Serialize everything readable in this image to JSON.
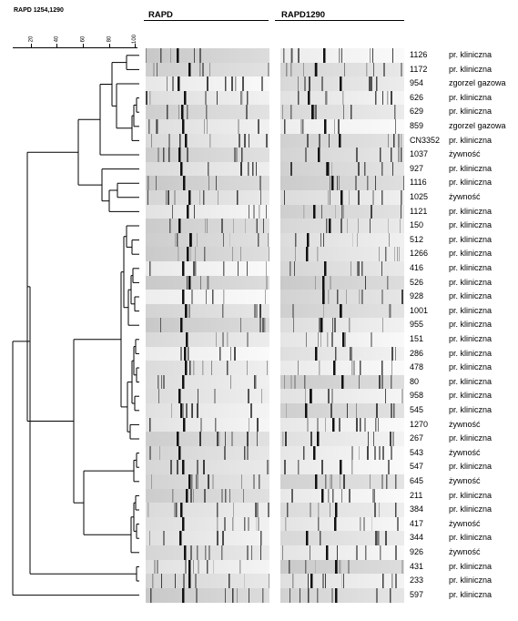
{
  "figure": {
    "title": "RAPD 1254,1290",
    "panel_headers": [
      "RAPD",
      "RAPD1290"
    ],
    "scale_ticks": [
      "20",
      "40",
      "60",
      "80",
      "100"
    ]
  },
  "samples": [
    {
      "id": "1126",
      "source": "pr. kliniczna"
    },
    {
      "id": "1172",
      "source": "pr. kliniczna"
    },
    {
      "id": "954",
      "source": "zgorzel gazowa"
    },
    {
      "id": "626",
      "source": "pr. kliniczna"
    },
    {
      "id": "629",
      "source": "pr. kliniczna"
    },
    {
      "id": "859",
      "source": "zgorzel gazowa"
    },
    {
      "id": "CN3352",
      "source": "pr. kliniczna"
    },
    {
      "id": "1037",
      "source": "żywność"
    },
    {
      "id": "927",
      "source": "pr. kliniczna"
    },
    {
      "id": "1116",
      "source": "pr. kliniczna"
    },
    {
      "id": "1025",
      "source": "żywność"
    },
    {
      "id": "1121",
      "source": "pr. kliniczna"
    },
    {
      "id": "150",
      "source": "pr. kliniczna"
    },
    {
      "id": "512",
      "source": "pr. kliniczna"
    },
    {
      "id": "1266",
      "source": "pr. kliniczna"
    },
    {
      "id": "416",
      "source": "pr. kliniczna"
    },
    {
      "id": "526",
      "source": "pr. kliniczna"
    },
    {
      "id": "928",
      "source": "pr. kliniczna"
    },
    {
      "id": "1001",
      "source": "pr. kliniczna"
    },
    {
      "id": "955",
      "source": "pr. kliniczna"
    },
    {
      "id": "151",
      "source": "pr. kliniczna"
    },
    {
      "id": "286",
      "source": "pr. kliniczna"
    },
    {
      "id": "478",
      "source": "pr. kliniczna"
    },
    {
      "id": "80",
      "source": "pr. kliniczna"
    },
    {
      "id": "958",
      "source": "pr. kliniczna"
    },
    {
      "id": "545",
      "source": "pr. kliniczna"
    },
    {
      "id": "1270",
      "source": "żywność"
    },
    {
      "id": "267",
      "source": "pr. kliniczna"
    },
    {
      "id": "543",
      "source": "żywność"
    },
    {
      "id": "547",
      "source": "pr. kliniczna"
    },
    {
      "id": "645",
      "source": "żywność"
    },
    {
      "id": "211",
      "source": "pr. kliniczna"
    },
    {
      "id": "384",
      "source": "pr. kliniczna"
    },
    {
      "id": "417",
      "source": "żywność"
    },
    {
      "id": "344",
      "source": "pr. kliniczna"
    },
    {
      "id": "926",
      "source": "żywność"
    },
    {
      "id": "431",
      "source": "pr. kliniczna"
    },
    {
      "id": "233",
      "source": "pr. kliniczna"
    },
    {
      "id": "597",
      "source": "pr. kliniczna"
    }
  ],
  "colors": {
    "text": "#000000",
    "line": "#000000",
    "gel_light": "#e8e8e8",
    "gel_dark": "#c4c4c4",
    "band": "#111111"
  }
}
